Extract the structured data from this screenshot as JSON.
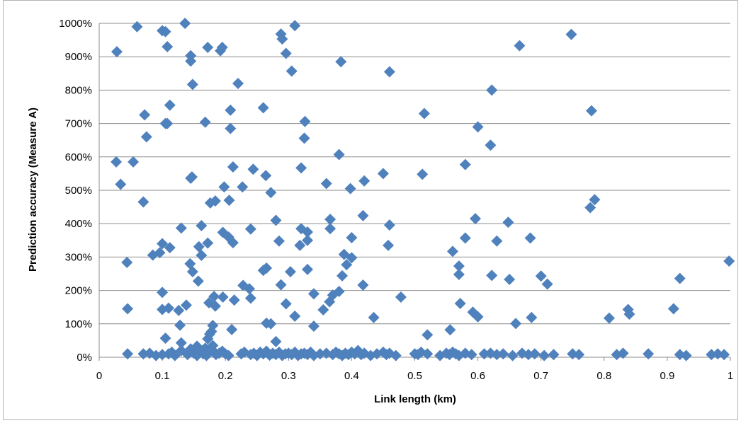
{
  "chart_data": {
    "type": "scatter",
    "xlabel": "Link length (km)",
    "ylabel": "Prediction accuracy (Measure A)",
    "xlim": [
      0,
      1
    ],
    "ylim": [
      0,
      1000
    ],
    "x_ticks": [
      "0",
      "0.1",
      "0.2",
      "0.3",
      "0.4",
      "0.5",
      "0.6",
      "0.7",
      "0.8",
      "0.9",
      "1"
    ],
    "y_ticks": [
      "0%",
      "100%",
      "200%",
      "300%",
      "400%",
      "500%",
      "600%",
      "700%",
      "800%",
      "900%",
      "1000%"
    ],
    "grid": "horizontal",
    "legend": "none",
    "marker_color": "#4F81BD",
    "marker": "diamond",
    "points": [
      [
        0.028,
        915
      ],
      [
        0.06,
        990
      ],
      [
        0.1,
        978
      ],
      [
        0.105,
        975
      ],
      [
        0.136,
        1000
      ],
      [
        0.288,
        968
      ],
      [
        0.29,
        953
      ],
      [
        0.31,
        993
      ],
      [
        0.108,
        930
      ],
      [
        0.145,
        903
      ],
      [
        0.145,
        887
      ],
      [
        0.172,
        928
      ],
      [
        0.192,
        918
      ],
      [
        0.195,
        928
      ],
      [
        0.296,
        910
      ],
      [
        0.383,
        885
      ],
      [
        0.305,
        857
      ],
      [
        0.46,
        855
      ],
      [
        0.666,
        933
      ],
      [
        0.748,
        967
      ],
      [
        0.148,
        817
      ],
      [
        0.22,
        820
      ],
      [
        0.622,
        800
      ],
      [
        0.072,
        726
      ],
      [
        0.112,
        755
      ],
      [
        0.105,
        700
      ],
      [
        0.108,
        700
      ],
      [
        0.168,
        704
      ],
      [
        0.208,
        740
      ],
      [
        0.26,
        747
      ],
      [
        0.326,
        706
      ],
      [
        0.208,
        685
      ],
      [
        0.515,
        730
      ],
      [
        0.6,
        690
      ],
      [
        0.78,
        738
      ],
      [
        0.075,
        660
      ],
      [
        0.325,
        656
      ],
      [
        0.62,
        635
      ],
      [
        0.027,
        585
      ],
      [
        0.054,
        585
      ],
      [
        0.034,
        518
      ],
      [
        0.147,
        540
      ],
      [
        0.145,
        536
      ],
      [
        0.212,
        570
      ],
      [
        0.244,
        563
      ],
      [
        0.32,
        567
      ],
      [
        0.38,
        607
      ],
      [
        0.58,
        577
      ],
      [
        0.264,
        544
      ],
      [
        0.45,
        550
      ],
      [
        0.512,
        548
      ],
      [
        0.07,
        465
      ],
      [
        0.176,
        462
      ],
      [
        0.184,
        468
      ],
      [
        0.198,
        510
      ],
      [
        0.206,
        470
      ],
      [
        0.227,
        510
      ],
      [
        0.272,
        493
      ],
      [
        0.36,
        520
      ],
      [
        0.398,
        505
      ],
      [
        0.42,
        528
      ],
      [
        0.778,
        448
      ],
      [
        0.785,
        472
      ],
      [
        0.13,
        387
      ],
      [
        0.162,
        394
      ],
      [
        0.24,
        384
      ],
      [
        0.28,
        410
      ],
      [
        0.32,
        385
      ],
      [
        0.33,
        375
      ],
      [
        0.366,
        413
      ],
      [
        0.366,
        385
      ],
      [
        0.418,
        424
      ],
      [
        0.46,
        396
      ],
      [
        0.596,
        415
      ],
      [
        0.648,
        404
      ],
      [
        0.1,
        340
      ],
      [
        0.096,
        313
      ],
      [
        0.085,
        306
      ],
      [
        0.112,
        328
      ],
      [
        0.158,
        331
      ],
      [
        0.162,
        305
      ],
      [
        0.172,
        342
      ],
      [
        0.196,
        374
      ],
      [
        0.205,
        360
      ],
      [
        0.212,
        343
      ],
      [
        0.285,
        348
      ],
      [
        0.318,
        335
      ],
      [
        0.33,
        350
      ],
      [
        0.4,
        358
      ],
      [
        0.388,
        308
      ],
      [
        0.392,
        277
      ],
      [
        0.4,
        298
      ],
      [
        0.458,
        335
      ],
      [
        0.56,
        317
      ],
      [
        0.58,
        357
      ],
      [
        0.63,
        348
      ],
      [
        0.683,
        357
      ],
      [
        0.044,
        284
      ],
      [
        0.144,
        280
      ],
      [
        0.148,
        256
      ],
      [
        0.157,
        228
      ],
      [
        0.26,
        260
      ],
      [
        0.265,
        267
      ],
      [
        0.303,
        256
      ],
      [
        0.33,
        263
      ],
      [
        0.385,
        244
      ],
      [
        0.57,
        273
      ],
      [
        0.57,
        248
      ],
      [
        0.622,
        245
      ],
      [
        0.65,
        233
      ],
      [
        0.7,
        243
      ],
      [
        0.71,
        219
      ],
      [
        0.998,
        288
      ],
      [
        0.1,
        194
      ],
      [
        0.126,
        140
      ],
      [
        0.1,
        143
      ],
      [
        0.11,
        147
      ],
      [
        0.138,
        156
      ],
      [
        0.174,
        163
      ],
      [
        0.182,
        182
      ],
      [
        0.184,
        153
      ],
      [
        0.196,
        180
      ],
      [
        0.214,
        171
      ],
      [
        0.228,
        215
      ],
      [
        0.238,
        205
      ],
      [
        0.24,
        177
      ],
      [
        0.288,
        217
      ],
      [
        0.296,
        160
      ],
      [
        0.31,
        123
      ],
      [
        0.34,
        190
      ],
      [
        0.355,
        142
      ],
      [
        0.365,
        166
      ],
      [
        0.37,
        186
      ],
      [
        0.38,
        197
      ],
      [
        0.418,
        216
      ],
      [
        0.435,
        119
      ],
      [
        0.478,
        180
      ],
      [
        0.572,
        161
      ],
      [
        0.592,
        135
      ],
      [
        0.6,
        121
      ],
      [
        0.66,
        101
      ],
      [
        0.685,
        119
      ],
      [
        0.808,
        117
      ],
      [
        0.838,
        143
      ],
      [
        0.84,
        129
      ],
      [
        0.91,
        145
      ],
      [
        0.92,
        236
      ],
      [
        0.045,
        145
      ],
      [
        0.128,
        96
      ],
      [
        0.105,
        57
      ],
      [
        0.178,
        77
      ],
      [
        0.18,
        95
      ],
      [
        0.21,
        83
      ],
      [
        0.265,
        102
      ],
      [
        0.272,
        100
      ],
      [
        0.34,
        93
      ],
      [
        0.52,
        67
      ],
      [
        0.556,
        82
      ],
      [
        0.13,
        43
      ],
      [
        0.168,
        27
      ],
      [
        0.172,
        55
      ],
      [
        0.175,
        69
      ],
      [
        0.18,
        35
      ],
      [
        0.28,
        47
      ],
      [
        0.155,
        33
      ],
      [
        0.045,
        10
      ],
      [
        0.07,
        10
      ],
      [
        0.08,
        12
      ],
      [
        0.09,
        5
      ],
      [
        0.1,
        8
      ],
      [
        0.11,
        10
      ],
      [
        0.115,
        15
      ],
      [
        0.12,
        5
      ],
      [
        0.13,
        20
      ],
      [
        0.14,
        8
      ],
      [
        0.145,
        25
      ],
      [
        0.15,
        12
      ],
      [
        0.155,
        5
      ],
      [
        0.16,
        20
      ],
      [
        0.165,
        10
      ],
      [
        0.17,
        5
      ],
      [
        0.175,
        15
      ],
      [
        0.18,
        20
      ],
      [
        0.185,
        8
      ],
      [
        0.19,
        12
      ],
      [
        0.195,
        18
      ],
      [
        0.2,
        10
      ],
      [
        0.205,
        5
      ],
      [
        0.225,
        10
      ],
      [
        0.23,
        15
      ],
      [
        0.24,
        8
      ],
      [
        0.245,
        12
      ],
      [
        0.25,
        5
      ],
      [
        0.255,
        15
      ],
      [
        0.26,
        10
      ],
      [
        0.265,
        18
      ],
      [
        0.27,
        6
      ],
      [
        0.275,
        12
      ],
      [
        0.28,
        8
      ],
      [
        0.285,
        15
      ],
      [
        0.29,
        5
      ],
      [
        0.295,
        10
      ],
      [
        0.3,
        12
      ],
      [
        0.305,
        8
      ],
      [
        0.31,
        15
      ],
      [
        0.315,
        5
      ],
      [
        0.32,
        10
      ],
      [
        0.325,
        12
      ],
      [
        0.33,
        8
      ],
      [
        0.335,
        15
      ],
      [
        0.34,
        5
      ],
      [
        0.35,
        10
      ],
      [
        0.36,
        12
      ],
      [
        0.37,
        8
      ],
      [
        0.375,
        15
      ],
      [
        0.38,
        10
      ],
      [
        0.385,
        5
      ],
      [
        0.39,
        12
      ],
      [
        0.395,
        8
      ],
      [
        0.4,
        15
      ],
      [
        0.405,
        10
      ],
      [
        0.41,
        20
      ],
      [
        0.415,
        8
      ],
      [
        0.42,
        12
      ],
      [
        0.43,
        5
      ],
      [
        0.44,
        10
      ],
      [
        0.45,
        15
      ],
      [
        0.455,
        8
      ],
      [
        0.46,
        12
      ],
      [
        0.47,
        5
      ],
      [
        0.5,
        10
      ],
      [
        0.505,
        8
      ],
      [
        0.51,
        15
      ],
      [
        0.52,
        10
      ],
      [
        0.54,
        5
      ],
      [
        0.55,
        12
      ],
      [
        0.555,
        8
      ],
      [
        0.56,
        15
      ],
      [
        0.565,
        10
      ],
      [
        0.57,
        5
      ],
      [
        0.58,
        12
      ],
      [
        0.59,
        8
      ],
      [
        0.61,
        10
      ],
      [
        0.62,
        12
      ],
      [
        0.63,
        8
      ],
      [
        0.64,
        10
      ],
      [
        0.655,
        5
      ],
      [
        0.67,
        12
      ],
      [
        0.68,
        8
      ],
      [
        0.69,
        10
      ],
      [
        0.705,
        5
      ],
      [
        0.72,
        8
      ],
      [
        0.75,
        10
      ],
      [
        0.76,
        8
      ],
      [
        0.82,
        8
      ],
      [
        0.83,
        12
      ],
      [
        0.87,
        10
      ],
      [
        0.92,
        8
      ],
      [
        0.93,
        5
      ],
      [
        0.97,
        8
      ],
      [
        0.98,
        10
      ],
      [
        0.99,
        8
      ]
    ]
  }
}
